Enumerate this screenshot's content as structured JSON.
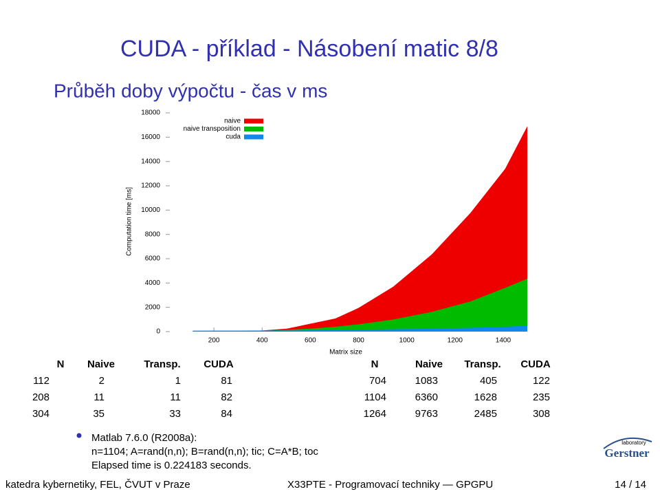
{
  "title": "CUDA - příklad - Násobení matic 8/8",
  "subtitle": "Průběh doby výpočtu - čas v ms",
  "chart_data": {
    "type": "area",
    "x_label": "Matrix size",
    "y_label": "Computation time [ms]",
    "x": [
      112,
      208,
      304,
      400,
      504,
      600,
      704,
      800,
      944,
      1104,
      1264,
      1408,
      1500
    ],
    "series": [
      {
        "name": "naive",
        "color": "#ee0000",
        "values": [
          2,
          11,
          35,
          90,
          250,
          650,
          1083,
          1950,
          3700,
          6360,
          9763,
          13400,
          16900
        ]
      },
      {
        "name": "naive transposition",
        "color": "#00bb00",
        "values": [
          1,
          11,
          33,
          70,
          150,
          250,
          405,
          600,
          1000,
          1628,
          2485,
          3600,
          4350
        ]
      },
      {
        "name": "cuda",
        "color": "#1188ee",
        "values": [
          81,
          82,
          84,
          90,
          95,
          105,
          122,
          150,
          200,
          235,
          308,
          400,
          470
        ]
      }
    ],
    "xlim": [
      0,
      1500
    ],
    "ylim": [
      0,
      18400
    ],
    "xticks": [
      200,
      400,
      600,
      800,
      1000,
      1200,
      1400
    ],
    "yticks": [
      0,
      2000,
      4000,
      6000,
      8000,
      10000,
      12000,
      14000,
      16000,
      18000
    ]
  },
  "tables": [
    {
      "headers": [
        "N",
        "Naive",
        "Transp.",
        "CUDA"
      ],
      "rows": [
        [
          "112",
          "2",
          "1",
          "81"
        ],
        [
          "208",
          "11",
          "11",
          "82"
        ],
        [
          "304",
          "35",
          "33",
          "84"
        ]
      ]
    },
    {
      "headers": [
        "N",
        "Naive",
        "Transp.",
        "CUDA"
      ],
      "rows": [
        [
          "704",
          "1083",
          "405",
          "122"
        ],
        [
          "1104",
          "6360",
          "1628",
          "235"
        ],
        [
          "1264",
          "9763",
          "2485",
          "308"
        ]
      ]
    }
  ],
  "bullet": {
    "lines": [
      "Matlab 7.6.0 (R2008a):",
      "n=1104; A=rand(n,n); B=rand(n,n); tic; C=A*B; toc",
      "Elapsed time is 0.224183 seconds."
    ]
  },
  "logo": {
    "small": "laboratory",
    "name": "Gerstner"
  },
  "footer": {
    "left": "katedra kybernetiky, FEL, ČVUT v Praze",
    "center": "X33PTE - Programovací techniky — GPGPU",
    "right": "14 / 14"
  }
}
